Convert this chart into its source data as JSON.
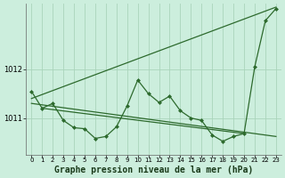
{
  "title": "Graphe pression niveau de la mer (hPa)",
  "background_color": "#cceedd",
  "line_color": "#2d6a2d",
  "grid_color": "#aad4bb",
  "xlim": [
    -0.5,
    23.5
  ],
  "ylim": [
    1010.25,
    1013.35
  ],
  "yticks": [
    1011,
    1012
  ],
  "xticks": [
    0,
    1,
    2,
    3,
    4,
    5,
    6,
    7,
    8,
    9,
    10,
    11,
    12,
    13,
    14,
    15,
    16,
    17,
    18,
    19,
    20,
    21,
    22,
    23
  ],
  "x_tick_fontsize": 5.0,
  "y_tick_fontsize": 6.0,
  "title_fontsize": 7.0,
  "main_series_x": [
    0,
    1,
    2,
    3,
    4,
    5,
    6,
    7,
    8,
    9,
    10,
    11,
    12,
    13,
    14,
    15,
    16,
    17,
    18,
    19,
    20,
    21,
    22,
    23
  ],
  "main_series_y": [
    1011.55,
    1011.2,
    1011.3,
    1010.95,
    1010.8,
    1010.78,
    1010.58,
    1010.62,
    1010.82,
    1011.25,
    1011.78,
    1011.5,
    1011.32,
    1011.45,
    1011.15,
    1011.0,
    1010.95,
    1010.65,
    1010.52,
    1010.62,
    1010.68,
    1012.05,
    1013.0,
    1013.25
  ],
  "trend1_x": [
    0,
    23
  ],
  "trend1_y": [
    1011.4,
    1013.28
  ],
  "trend2_x": [
    0,
    23
  ],
  "trend2_y": [
    1011.3,
    1010.62
  ],
  "trend3_x": [
    1,
    20
  ],
  "trend3_y": [
    1011.2,
    1010.68
  ]
}
